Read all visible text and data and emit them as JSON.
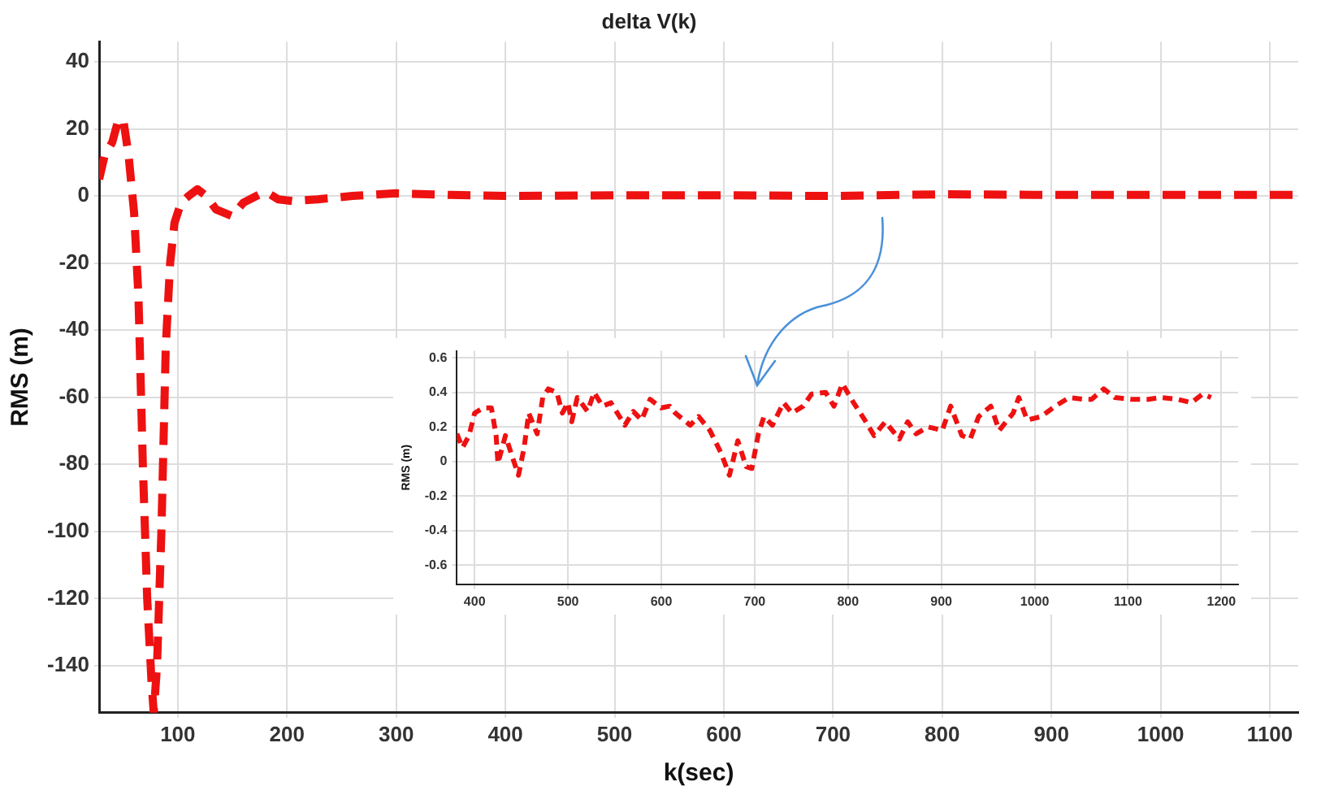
{
  "chart_data": [
    {
      "type": "line",
      "title": "delta V(k)",
      "xlabel": "k(sec)",
      "ylabel": "RMS (m)",
      "xlim": [
        28,
        1126
      ],
      "ylim": [
        -154,
        46
      ],
      "xticks": [
        100,
        200,
        300,
        400,
        500,
        600,
        700,
        800,
        900,
        1000,
        1100
      ],
      "yticks": [
        -140,
        -120,
        -100,
        -80,
        -60,
        -40,
        -20,
        0,
        20,
        40
      ],
      "grid": true,
      "line_style": "dashed",
      "legend": false,
      "series": [
        {
          "color": "#ee1111",
          "x": [
            28,
            33,
            40,
            45,
            50,
            55,
            60,
            64,
            68,
            72,
            76,
            78,
            81,
            85,
            89,
            93,
            97,
            103,
            110,
            118,
            126,
            135,
            150,
            160,
            175,
            182,
            192,
            205,
            228,
            260,
            300,
            350,
            400,
            500,
            600,
            700,
            800,
            900,
            1000,
            1100,
            1125
          ],
          "values": [
            5,
            12,
            16,
            22,
            23,
            12,
            -5,
            -30,
            -80,
            -120,
            -145,
            -154,
            -140,
            -100,
            -45,
            -20,
            -8,
            -2,
            0,
            2,
            0,
            -4,
            -6,
            -2,
            0.5,
            1,
            -1,
            -1.5,
            -1,
            0,
            0.8,
            0.3,
            0,
            0.2,
            0.2,
            0,
            0.5,
            0.3,
            0.3,
            0.3,
            0.3
          ]
        }
      ]
    },
    {
      "type": "line",
      "ylabel": "RMS (m)",
      "xlim": [
        381,
        1218
      ],
      "ylim": [
        -0.71,
        0.64
      ],
      "xticks": [
        400,
        500,
        600,
        700,
        800,
        900,
        1000,
        1100,
        1200
      ],
      "yticks": [
        -0.6,
        -0.4,
        -0.2,
        0,
        0.2,
        0.4,
        0.6
      ],
      "grid": true,
      "line_style": "dashed",
      "legend": false,
      "series": [
        {
          "color": "#ee1111",
          "x": [
            381,
            387,
            394,
            400,
            409,
            418,
            423,
            425,
            433,
            439,
            447,
            453,
            458,
            467,
            473,
            479,
            488,
            494,
            500,
            504,
            510,
            521,
            528,
            537,
            546,
            561,
            570,
            579,
            588,
            600,
            609,
            615,
            631,
            640,
            652,
            664,
            673,
            682,
            691,
            697,
            704,
            710,
            719,
            731,
            740,
            752,
            761,
            776,
            785,
            794,
            806,
            818,
            828,
            840,
            855,
            864,
            873,
            886,
            901,
            910,
            922,
            931,
            940,
            953,
            962,
            977,
            983,
            992,
            1007,
            1022,
            1037,
            1052,
            1061,
            1074,
            1086,
            1104,
            1122,
            1135,
            1153,
            1168,
            1180,
            1189
          ],
          "values": [
            0.16,
            0.08,
            0.15,
            0.28,
            0.31,
            0.31,
            0.15,
            -0.01,
            0.15,
            0.05,
            -0.08,
            0.08,
            0.28,
            0.16,
            0.37,
            0.42,
            0.4,
            0.28,
            0.34,
            0.23,
            0.37,
            0.29,
            0.4,
            0.32,
            0.34,
            0.21,
            0.29,
            0.24,
            0.36,
            0.31,
            0.32,
            0.28,
            0.21,
            0.26,
            0.18,
            0.05,
            -0.08,
            0.12,
            -0.03,
            -0.04,
            0.16,
            0.26,
            0.21,
            0.34,
            0.28,
            0.32,
            0.39,
            0.4,
            0.32,
            0.45,
            0.34,
            0.24,
            0.15,
            0.23,
            0.13,
            0.23,
            0.16,
            0.2,
            0.18,
            0.32,
            0.15,
            0.13,
            0.26,
            0.32,
            0.18,
            0.28,
            0.37,
            0.24,
            0.26,
            0.32,
            0.37,
            0.36,
            0.36,
            0.42,
            0.37,
            0.36,
            0.36,
            0.37,
            0.36,
            0.34,
            0.39,
            0.37
          ]
        }
      ]
    }
  ]
}
